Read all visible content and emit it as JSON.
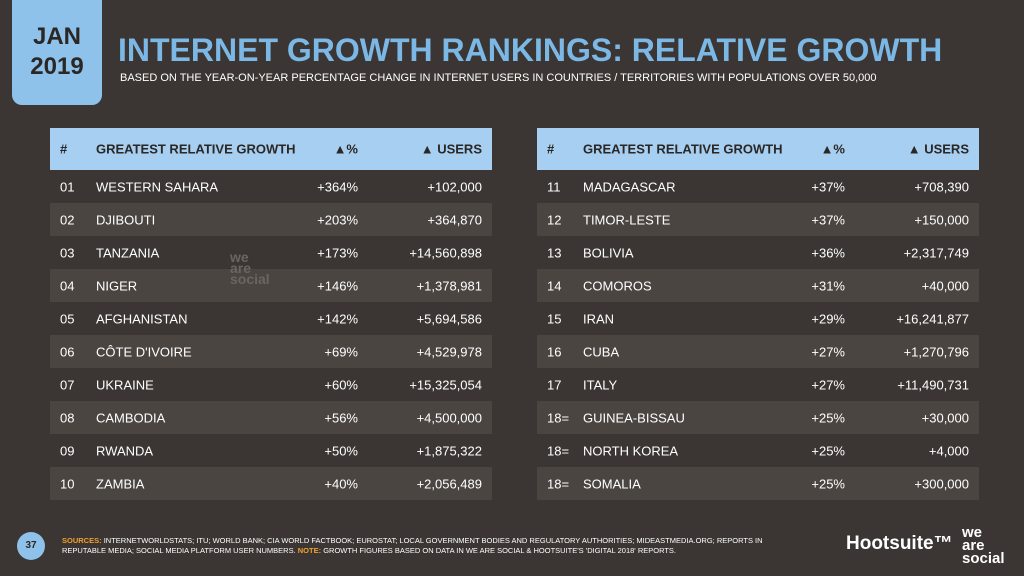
{
  "header": {
    "badge": [
      "JAN",
      "2019"
    ],
    "title": "INTERNET GROWTH RANKINGS: RELATIVE GROWTH",
    "subtitle": "BASED ON THE YEAR-ON-YEAR PERCENTAGE CHANGE IN INTERNET USERS IN COUNTRIES / TERRITORIES WITH POPULATIONS OVER 50,000"
  },
  "tables": [
    {
      "columns": [
        "#",
        "GREATEST RELATIVE GROWTH",
        "▲%",
        "▲ USERS"
      ],
      "rows": [
        [
          "01",
          "WESTERN SAHARA",
          "+364%",
          "+102,000"
        ],
        [
          "02",
          "DJIBOUTI",
          "+203%",
          "+364,870"
        ],
        [
          "03",
          "TANZANIA",
          "+173%",
          "+14,560,898"
        ],
        [
          "04",
          "NIGER",
          "+146%",
          "+1,378,981"
        ],
        [
          "05",
          "AFGHANISTAN",
          "+142%",
          "+5,694,586"
        ],
        [
          "06",
          "CÔTE D'IVOIRE",
          "+69%",
          "+4,529,978"
        ],
        [
          "07",
          "UKRAINE",
          "+60%",
          "+15,325,054"
        ],
        [
          "08",
          "CAMBODIA",
          "+56%",
          "+4,500,000"
        ],
        [
          "09",
          "RWANDA",
          "+50%",
          "+1,875,322"
        ],
        [
          "10",
          "ZAMBIA",
          "+40%",
          "+2,056,489"
        ]
      ]
    },
    {
      "columns": [
        "#",
        "GREATEST RELATIVE GROWTH",
        "▲%",
        "▲ USERS"
      ],
      "rows": [
        [
          "11",
          "MADAGASCAR",
          "+37%",
          "+708,390"
        ],
        [
          "12",
          "TIMOR-LESTE",
          "+37%",
          "+150,000"
        ],
        [
          "13",
          "BOLIVIA",
          "+36%",
          "+2,317,749"
        ],
        [
          "14",
          "COMOROS",
          "+31%",
          "+40,000"
        ],
        [
          "15",
          "IRAN",
          "+29%",
          "+16,241,877"
        ],
        [
          "16",
          "CUBA",
          "+27%",
          "+1,270,796"
        ],
        [
          "17",
          "ITALY",
          "+27%",
          "+11,490,731"
        ],
        [
          "18=",
          "GUINEA-BISSAU",
          "+25%",
          "+30,000"
        ],
        [
          "18=",
          "NORTH KOREA",
          "+25%",
          "+4,000"
        ],
        [
          "18=",
          "SOMALIA",
          "+25%",
          "+300,000"
        ]
      ]
    }
  ],
  "watermark": [
    "we",
    "are",
    "social"
  ],
  "footer": {
    "page": "37",
    "sources_label": "SOURCES:",
    "sources": "INTERNETWORLDSTATS; ITU; WORLD BANK; CIA WORLD FACTBOOK; EUROSTAT; LOCAL GOVERNMENT BODIES AND REGULATORY AUTHORITIES; MIDEASTMEDIA.ORG; REPORTS IN REPUTABLE MEDIA; SOCIAL MEDIA PLATFORM USER NUMBERS.",
    "note_label": "NOTE:",
    "note": "GROWTH FIGURES BASED ON DATA IN WE ARE SOCIAL & HOOTSUITE'S 'DIGITAL 2018' REPORTS.",
    "brands": {
      "hootsuite": "Hootsuite™",
      "wearesocial": [
        "we",
        "are",
        "social"
      ]
    }
  }
}
